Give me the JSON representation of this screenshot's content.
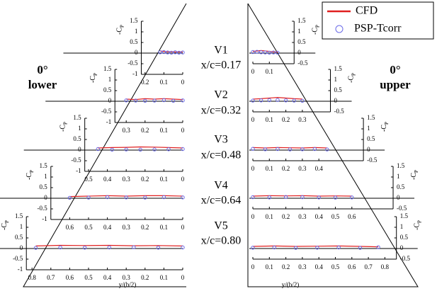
{
  "labels": {
    "lower_angle": "0°",
    "lower_surface": "lower",
    "upper_angle": "0°",
    "upper_surface": "upper",
    "stations": [
      {
        "name": "V1",
        "position": "x/c=0.17"
      },
      {
        "name": "V2",
        "position": "x/c=0.32"
      },
      {
        "name": "V3",
        "position": "x/c=0.48"
      },
      {
        "name": "V4",
        "position": "x/c=0.64"
      },
      {
        "name": "V5",
        "position": "x/c=0.80"
      }
    ]
  },
  "chart_data": [
    {
      "type": "line",
      "ylabel": {
        "base": "-C",
        "subscript": "P"
      },
      "x": [
        0,
        0.02,
        0.04,
        0.06,
        0.08,
        0.1,
        0.12
      ],
      "xlim": [
        0.22,
        0
      ],
      "xticks": [
        0.2,
        0.1,
        0
      ],
      "ylim": [
        -1,
        1.5
      ],
      "yticks": [
        1.5,
        1,
        0.5,
        0,
        -0.5,
        -1
      ],
      "series": [
        {
          "name": "CFD",
          "color": "#e02020",
          "mode": "line",
          "values": [
            0.05,
            0.06,
            0.05,
            0.07,
            0.06,
            0.08,
            0.1
          ]
        },
        {
          "name": "PSP-Tcorr",
          "color": "#6a6ae8",
          "mode": "markers",
          "values": [
            0.03,
            0.02,
            0.04,
            0.02,
            0.03,
            0.05,
            0.04
          ]
        }
      ]
    },
    {
      "type": "line",
      "ylabel": {
        "base": "-C",
        "subscript": "P"
      },
      "x": [
        0,
        0.05,
        0.1,
        0.15,
        0.2,
        0.25,
        0.3
      ],
      "xlim": [
        0.36,
        0
      ],
      "xticks": [
        0.3,
        0.2,
        0.1,
        0
      ],
      "ylim": [
        -1,
        1.5
      ],
      "yticks": [
        1.5,
        1,
        0.5,
        0,
        -0.5,
        -1
      ],
      "series": [
        {
          "name": "CFD",
          "color": "#e02020",
          "mode": "line",
          "values": [
            0.08,
            0.1,
            0.12,
            0.1,
            0.12,
            0.08,
            0.1
          ]
        },
        {
          "name": "PSP-Tcorr",
          "color": "#6a6ae8",
          "mode": "markers",
          "values": [
            0.04,
            0.02,
            0.05,
            0.03,
            0.02,
            0.03,
            0.04
          ]
        }
      ]
    },
    {
      "type": "line",
      "ylabel": {
        "base": "-C",
        "subscript": "P"
      },
      "x": [
        0,
        0.075,
        0.15,
        0.225,
        0.3,
        0.375,
        0.45
      ],
      "xlim": [
        0.52,
        0
      ],
      "xticks": [
        0.5,
        0.4,
        0.3,
        0.2,
        0.1,
        0
      ],
      "ylim": [
        -1,
        1.5
      ],
      "yticks": [
        1.5,
        1,
        0.5,
        0,
        -0.5,
        -1
      ],
      "series": [
        {
          "name": "CFD",
          "color": "#e02020",
          "mode": "line",
          "values": [
            0.1,
            0.12,
            0.14,
            0.15,
            0.13,
            0.12,
            0.1
          ]
        },
        {
          "name": "PSP-Tcorr",
          "color": "#6a6ae8",
          "mode": "markers",
          "values": [
            0.05,
            0.04,
            0.03,
            0.02,
            0.03,
            0.02,
            0.05
          ]
        }
      ]
    },
    {
      "type": "line",
      "ylabel": {
        "base": "-C",
        "subscript": "P"
      },
      "x": [
        0,
        0.1,
        0.2,
        0.3,
        0.4,
        0.5,
        0.6
      ],
      "xlim": [
        0.7,
        0
      ],
      "xticks": [
        0.6,
        0.5,
        0.4,
        0.3,
        0.2,
        0.1,
        0
      ],
      "ylim": [
        -1,
        1.5
      ],
      "yticks": [
        1.5,
        1,
        0.5,
        0,
        -0.5,
        -1
      ],
      "series": [
        {
          "name": "CFD",
          "color": "#e02020",
          "mode": "line",
          "values": [
            0.1,
            0.12,
            0.12,
            0.1,
            0.12,
            0.1,
            0.08
          ]
        },
        {
          "name": "PSP-Tcorr",
          "color": "#6a6ae8",
          "mode": "markers",
          "values": [
            0.04,
            0.05,
            0.03,
            0.04,
            0.05,
            0.03,
            0.02
          ]
        }
      ]
    },
    {
      "type": "line",
      "ylabel": {
        "base": "-C",
        "subscript": "P"
      },
      "xlabel": "y/(b/2)",
      "x": [
        0,
        0.13,
        0.26,
        0.39,
        0.52,
        0.65,
        0.78
      ],
      "xlim": [
        0.83,
        0
      ],
      "xticks": [
        0.8,
        0.7,
        0.6,
        0.5,
        0.4,
        0.3,
        0.2,
        0.1,
        0
      ],
      "ylim": [
        -1,
        1.5
      ],
      "yticks": [
        1.5,
        1,
        0.5,
        0,
        -0.5,
        -1
      ],
      "series": [
        {
          "name": "CFD",
          "color": "#e02020",
          "mode": "line",
          "values": [
            0.12,
            0.14,
            0.13,
            0.15,
            0.14,
            0.15,
            0.12
          ]
        },
        {
          "name": "PSP-Tcorr",
          "color": "#6a6ae8",
          "mode": "markers",
          "values": [
            0.05,
            0.04,
            0.06,
            0.05,
            0.04,
            0.05,
            0.03
          ]
        }
      ]
    },
    {
      "type": "line",
      "ylabel": {
        "base": "-C",
        "subscript": "P"
      },
      "x": [
        0,
        0.025,
        0.05,
        0.075,
        0.1,
        0.125,
        0.15
      ],
      "xlim": [
        0,
        0.25
      ],
      "xticks": [
        0,
        0.1
      ],
      "ylim": [
        -0.5,
        1.5
      ],
      "yticks": [
        1.5,
        1,
        0.5,
        0,
        -0.5
      ],
      "series": [
        {
          "name": "CFD",
          "color": "#e02020",
          "mode": "line",
          "values": [
            0.08,
            0.1,
            0.12,
            0.1,
            0.08,
            0.06,
            0.05
          ]
        },
        {
          "name": "PSP-Tcorr",
          "color": "#6a6ae8",
          "mode": "markers",
          "values": [
            0.05,
            0.06,
            0.04,
            0.03,
            0.02,
            0.03,
            0.02
          ]
        }
      ]
    },
    {
      "type": "line",
      "ylabel": {
        "base": "-C",
        "subscript": "P"
      },
      "x": [
        0,
        0.05,
        0.1,
        0.15,
        0.2,
        0.25,
        0.3
      ],
      "xlim": [
        0,
        0.47
      ],
      "xticks": [
        0,
        0.1,
        0.2,
        0.3
      ],
      "ylim": [
        -0.5,
        1.5
      ],
      "yticks": [
        1.5,
        1,
        0.5,
        0,
        -0.5
      ],
      "series": [
        {
          "name": "CFD",
          "color": "#e02020",
          "mode": "line",
          "values": [
            0.1,
            0.12,
            0.15,
            0.18,
            0.15,
            0.12,
            0.1
          ]
        },
        {
          "name": "PSP-Tcorr",
          "color": "#6a6ae8",
          "mode": "markers",
          "values": [
            0.03,
            0.04,
            0.05,
            0.06,
            0.04,
            0.03,
            0.02
          ]
        }
      ]
    },
    {
      "type": "line",
      "ylabel": {
        "base": "-C",
        "subscript": "P"
      },
      "x": [
        0,
        0.075,
        0.15,
        0.225,
        0.3,
        0.375,
        0.45
      ],
      "xlim": [
        0,
        0.67
      ],
      "xticks": [
        0,
        0.1,
        0.2,
        0.3,
        0.4
      ],
      "ylim": [
        -0.5,
        1.5
      ],
      "yticks": [
        1.5,
        1,
        0.5,
        0,
        -0.5
      ],
      "series": [
        {
          "name": "CFD",
          "color": "#e02020",
          "mode": "line",
          "values": [
            0.12,
            0.1,
            0.12,
            0.11,
            0.1,
            0.12,
            0.1
          ]
        },
        {
          "name": "PSP-Tcorr",
          "color": "#6a6ae8",
          "mode": "markers",
          "values": [
            0.06,
            0.04,
            0.05,
            0.03,
            0.04,
            0.05,
            0.03
          ]
        }
      ]
    },
    {
      "type": "line",
      "ylabel": {
        "base": "-C",
        "subscript": "P"
      },
      "x": [
        0,
        0.1,
        0.2,
        0.3,
        0.4,
        0.5,
        0.6
      ],
      "xlim": [
        0,
        0.85
      ],
      "xticks": [
        0,
        0.1,
        0.2,
        0.3,
        0.4,
        0.5,
        0.6
      ],
      "ylim": [
        -0.5,
        1.5
      ],
      "yticks": [
        1.5,
        1,
        0.5,
        0,
        -0.5
      ],
      "series": [
        {
          "name": "CFD",
          "color": "#e02020",
          "mode": "line",
          "values": [
            0.1,
            0.12,
            0.11,
            0.12,
            0.1,
            0.11,
            0.1
          ]
        },
        {
          "name": "PSP-Tcorr",
          "color": "#6a6ae8",
          "mode": "markers",
          "values": [
            0.05,
            0.04,
            0.06,
            0.05,
            0.04,
            0.03,
            0.04
          ]
        }
      ]
    },
    {
      "type": "line",
      "ylabel": {
        "base": "-C",
        "subscript": "P"
      },
      "xlabel": "y/(b/2)",
      "x": [
        0,
        0.13,
        0.26,
        0.39,
        0.52,
        0.65,
        0.76
      ],
      "xlim": [
        0,
        0.87
      ],
      "xticks": [
        0,
        0.1,
        0.2,
        0.3,
        0.4,
        0.5,
        0.6,
        0.7,
        0.8
      ],
      "ylim": [
        -0.5,
        1.5
      ],
      "yticks": [
        1.5,
        1,
        0.5,
        0,
        -0.5
      ],
      "series": [
        {
          "name": "CFD",
          "color": "#e02020",
          "mode": "line",
          "values": [
            0.1,
            0.12,
            0.1,
            0.11,
            0.12,
            0.1,
            0.08
          ]
        },
        {
          "name": "PSP-Tcorr",
          "color": "#6a6ae8",
          "mode": "markers",
          "values": [
            0.04,
            0.05,
            0.03,
            0.04,
            0.05,
            0.03,
            0.06
          ]
        }
      ]
    }
  ]
}
